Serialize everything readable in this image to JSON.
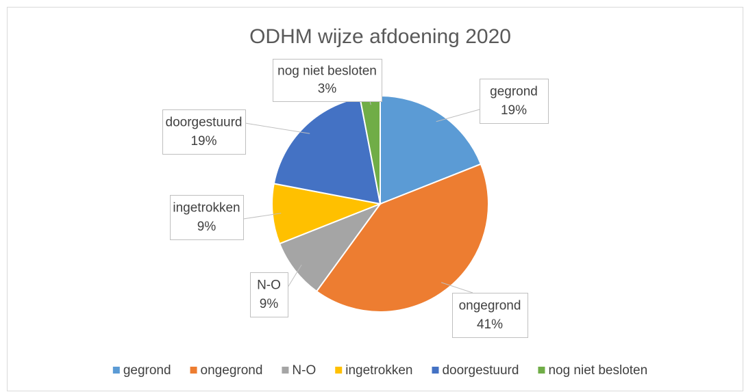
{
  "chart_data": {
    "type": "pie",
    "title": "ODHM wijze afdoening 2020",
    "categories": [
      "gegrond",
      "ongegrond",
      "N-O",
      "ingetrokken",
      "doorgestuurd",
      "nog niet besloten"
    ],
    "values": [
      19,
      41,
      9,
      9,
      19,
      3
    ],
    "value_labels": [
      "19%",
      "41%",
      "9%",
      "9%",
      "19%",
      "3%"
    ],
    "colors": [
      "#5b9bd5",
      "#ed7d31",
      "#a5a5a5",
      "#ffc000",
      "#4472c4",
      "#70ad47"
    ],
    "legend": "bottom"
  }
}
